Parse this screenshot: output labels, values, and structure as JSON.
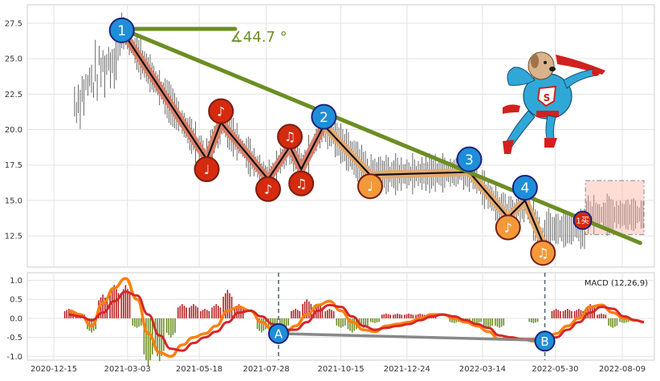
{
  "chart_data": [
    {
      "type": "line",
      "panel": "price",
      "x_tick_labels": [
        "2020-12-15",
        "2021-03-03",
        "2021-05-18",
        "2021-07-28",
        "2021-10-15",
        "2021-12-24",
        "2022-03-14",
        "2022-05-30",
        "2022-08-09"
      ],
      "y_tick_labels": [
        "12.5",
        "15.0",
        "17.5",
        "20.0",
        "22.5",
        "25.0",
        "27.5"
      ],
      "ylim": [
        10.3,
        28.8
      ],
      "grid": true,
      "angle_label": "∡44.7 °",
      "trend_line": {
        "x": [
          "2021-02-25",
          "2022-08-28"
        ],
        "y": [
          27.1,
          12.0
        ],
        "color": "#6b8e23"
      },
      "angle_ref_line": {
        "x": [
          "2021-02-25",
          "2021-06-25"
        ],
        "y": [
          27.1,
          27.1
        ]
      },
      "zigzag": {
        "x": [
          "2021-02-25",
          "2021-05-26",
          "2021-06-10",
          "2021-07-30",
          "2021-08-22",
          "2021-09-03",
          "2021-09-27",
          "2021-11-15",
          "2022-02-28",
          "2022-04-10",
          "2022-04-28",
          "2022-05-17"
        ],
        "y": [
          27.0,
          17.9,
          20.5,
          16.5,
          18.8,
          17.2,
          20.3,
          16.8,
          17.0,
          13.8,
          15.0,
          12.0
        ]
      },
      "markers": [
        {
          "label": "1",
          "kind": "peak",
          "x": "2021-02-25",
          "y": 27.0
        },
        {
          "label": "♩",
          "kind": "low",
          "x": "2021-05-26",
          "y": 17.2
        },
        {
          "label": "♪",
          "kind": "high",
          "x": "2021-06-10",
          "y": 21.3
        },
        {
          "label": "♪",
          "kind": "low",
          "x": "2021-07-30",
          "y": 15.8
        },
        {
          "label": "♫",
          "kind": "high",
          "x": "2021-08-22",
          "y": 19.5
        },
        {
          "label": "♫",
          "kind": "low",
          "x": "2021-09-03",
          "y": 16.2
        },
        {
          "label": "2",
          "kind": "peak",
          "x": "2021-09-27",
          "y": 20.9
        },
        {
          "label": "♩",
          "kind": "low-alt",
          "x": "2021-11-15",
          "y": 16.0
        },
        {
          "label": "3",
          "kind": "peak",
          "x": "2022-02-28",
          "y": 17.9
        },
        {
          "label": "♪",
          "kind": "low-alt",
          "x": "2022-04-10",
          "y": 13.1
        },
        {
          "label": "4",
          "kind": "peak",
          "x": "2022-04-28",
          "y": 15.9
        },
        {
          "label": "♫",
          "kind": "low-alt",
          "x": "2022-05-17",
          "y": 11.3
        },
        {
          "label": "1买",
          "kind": "buy",
          "x": "2022-06-28",
          "y": 13.6
        }
      ],
      "box": {
        "x": [
          "2022-07-01",
          "2022-09-01"
        ],
        "y": [
          12.6,
          16.4
        ]
      }
    },
    {
      "type": "line",
      "panel": "macd",
      "legend": "MACD (12,26,9)",
      "y_tick_labels": [
        "1.0",
        "0.5",
        "0.0",
        "-0.5",
        "-1.0"
      ],
      "ylim": [
        -1.1,
        1.2
      ],
      "grid": true,
      "series_colors": {
        "dif": "#ff7f0e",
        "dea": "#d62728",
        "hist_pos": "#b22222",
        "hist_neg": "#6b8e23"
      },
      "x": [
        "2020-12-31",
        "2021-01-12",
        "2021-01-24",
        "2021-02-05",
        "2021-02-17",
        "2021-03-01",
        "2021-03-13",
        "2021-03-25",
        "2021-04-06",
        "2021-04-18",
        "2021-04-30",
        "2021-05-12",
        "2021-05-24",
        "2021-06-05",
        "2021-06-17",
        "2021-06-29",
        "2021-07-11",
        "2021-07-23",
        "2021-08-04",
        "2021-08-16",
        "2021-08-28",
        "2021-09-09",
        "2021-09-21",
        "2021-10-03",
        "2021-10-15",
        "2021-10-27",
        "2021-11-08",
        "2021-11-20",
        "2021-12-02",
        "2021-12-14",
        "2021-12-26",
        "2022-01-07",
        "2022-01-19",
        "2022-01-31",
        "2022-02-12",
        "2022-02-24",
        "2022-03-08",
        "2022-03-20",
        "2022-04-01",
        "2022-04-13",
        "2022-04-25",
        "2022-05-07",
        "2022-05-19",
        "2022-05-31",
        "2022-06-12",
        "2022-06-24",
        "2022-07-06",
        "2022-07-18",
        "2022-07-30",
        "2022-08-11",
        "2022-08-23",
        "2022-09-01"
      ],
      "dif": [
        0.2,
        0.1,
        -0.2,
        0.4,
        0.8,
        1.05,
        0.5,
        -0.4,
        -0.9,
        -1.0,
        -0.7,
        -0.5,
        -0.4,
        -0.2,
        0.2,
        0.3,
        0.2,
        -0.1,
        -0.3,
        -0.4,
        -0.2,
        0.1,
        0.35,
        0.45,
        0.2,
        -0.1,
        -0.3,
        -0.35,
        -0.2,
        -0.15,
        -0.1,
        0.0,
        0.1,
        0.1,
        0.0,
        -0.1,
        -0.2,
        -0.35,
        -0.55,
        -0.5,
        -0.55,
        -0.6,
        -0.6,
        -0.4,
        -0.2,
        0.0,
        0.3,
        0.35,
        0.15,
        0.0,
        -0.05,
        -0.1
      ],
      "dea": [
        0.1,
        0.05,
        -0.05,
        0.15,
        0.45,
        0.7,
        0.6,
        0.1,
        -0.45,
        -0.8,
        -0.85,
        -0.65,
        -0.5,
        -0.35,
        -0.1,
        0.15,
        0.2,
        0.05,
        -0.15,
        -0.3,
        -0.3,
        -0.1,
        0.2,
        0.35,
        0.3,
        0.05,
        -0.2,
        -0.3,
        -0.25,
        -0.2,
        -0.15,
        -0.05,
        0.05,
        0.1,
        0.05,
        -0.05,
        -0.15,
        -0.25,
        -0.45,
        -0.5,
        -0.55,
        -0.55,
        -0.6,
        -0.5,
        -0.3,
        -0.1,
        0.15,
        0.3,
        0.25,
        0.05,
        -0.05,
        -0.1
      ],
      "divergence_line": {
        "x": [
          "2021-08-10",
          "2022-05-19"
        ],
        "y": [
          -0.4,
          -0.58
        ]
      },
      "vlines": [
        "2021-08-10",
        "2022-05-19"
      ],
      "div_markers": [
        {
          "label": "A",
          "x": "2021-08-10",
          "y": -0.4
        },
        {
          "label": "B",
          "x": "2022-05-19",
          "y": -0.6
        }
      ]
    }
  ]
}
